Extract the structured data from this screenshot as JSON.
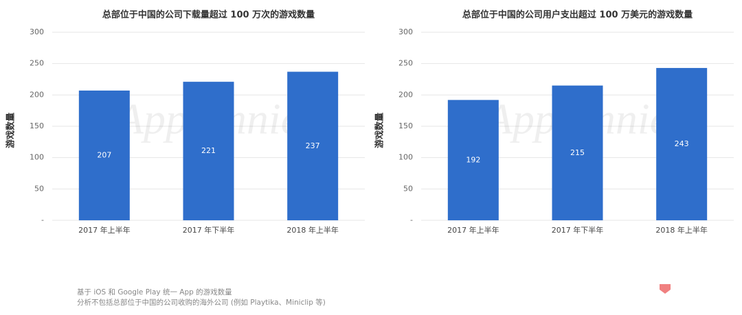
{
  "chart_data": [
    {
      "type": "bar",
      "title": "总部位于中国的公司下载量超过 100 万次的游戏数量",
      "y_label": "游戏数量",
      "watermark": "App Annie",
      "categories": [
        "2017 年上半年",
        "2017 年下半年",
        "2018 年上半年"
      ],
      "values": [
        207,
        221,
        237
      ],
      "color": "#2f6ecb",
      "ylim": [
        0,
        300
      ],
      "yticks": [
        {
          "value": 0,
          "label": "-"
        },
        50,
        100,
        150,
        200,
        250,
        300
      ],
      "grid": true
    },
    {
      "type": "bar",
      "title": "总部位于中国的公司用户支出超过 100 万美元的游戏数量",
      "y_label": "游戏数量",
      "watermark": "App Annie",
      "categories": [
        "2017 年上半年",
        "2017 年下半年",
        "2018 年上半年"
      ],
      "values": [
        192,
        215,
        243
      ],
      "color": "#2f6ecb",
      "ylim": [
        0,
        300
      ],
      "yticks": [
        {
          "value": 0,
          "label": "-"
        },
        50,
        100,
        150,
        200,
        250,
        300
      ],
      "grid": true
    }
  ],
  "footnotes": [
    "基于 iOS 和 Google Play 统一 App 的游戏数量",
    "分析不包括总部位于中国的公司收购的海外公司 (例如 Playtika、Miniclip 等)"
  ]
}
